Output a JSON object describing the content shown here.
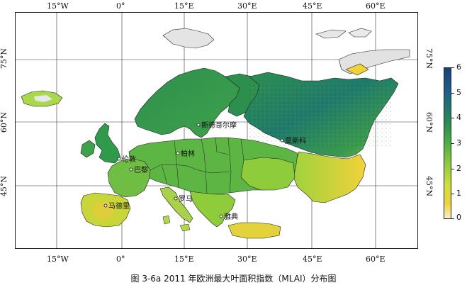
{
  "map": {
    "lon_ticks_top": [
      "15°W",
      "0°",
      "15°E",
      "30°E",
      "45°E",
      "60°E"
    ],
    "lon_ticks_bottom": [
      "15°W",
      "0°",
      "15°E",
      "30°E",
      "45°E",
      "60°E"
    ],
    "lat_ticks_left": [
      "75°N",
      "60°N",
      "45°N"
    ],
    "lat_ticks_right": [
      "75°N",
      "60°N",
      "45°N"
    ],
    "cities": [
      "斯德哥尔摩",
      "莫斯科",
      "伦敦",
      "柏林",
      "巴黎",
      "马德里",
      "罗马",
      "雅典"
    ]
  },
  "colorbar": {
    "labels": [
      "6",
      "5",
      "4",
      "3",
      "2",
      "1",
      "0"
    ],
    "min": 0,
    "max": 6
  },
  "caption": "图 3-6a 2011 年欧洲最大叶面积指数（MLAI）分布图",
  "colors": {
    "low": "#f2d23a",
    "mid": "#4fae45",
    "high": "#1b3f7a",
    "background": "#ffffff"
  }
}
